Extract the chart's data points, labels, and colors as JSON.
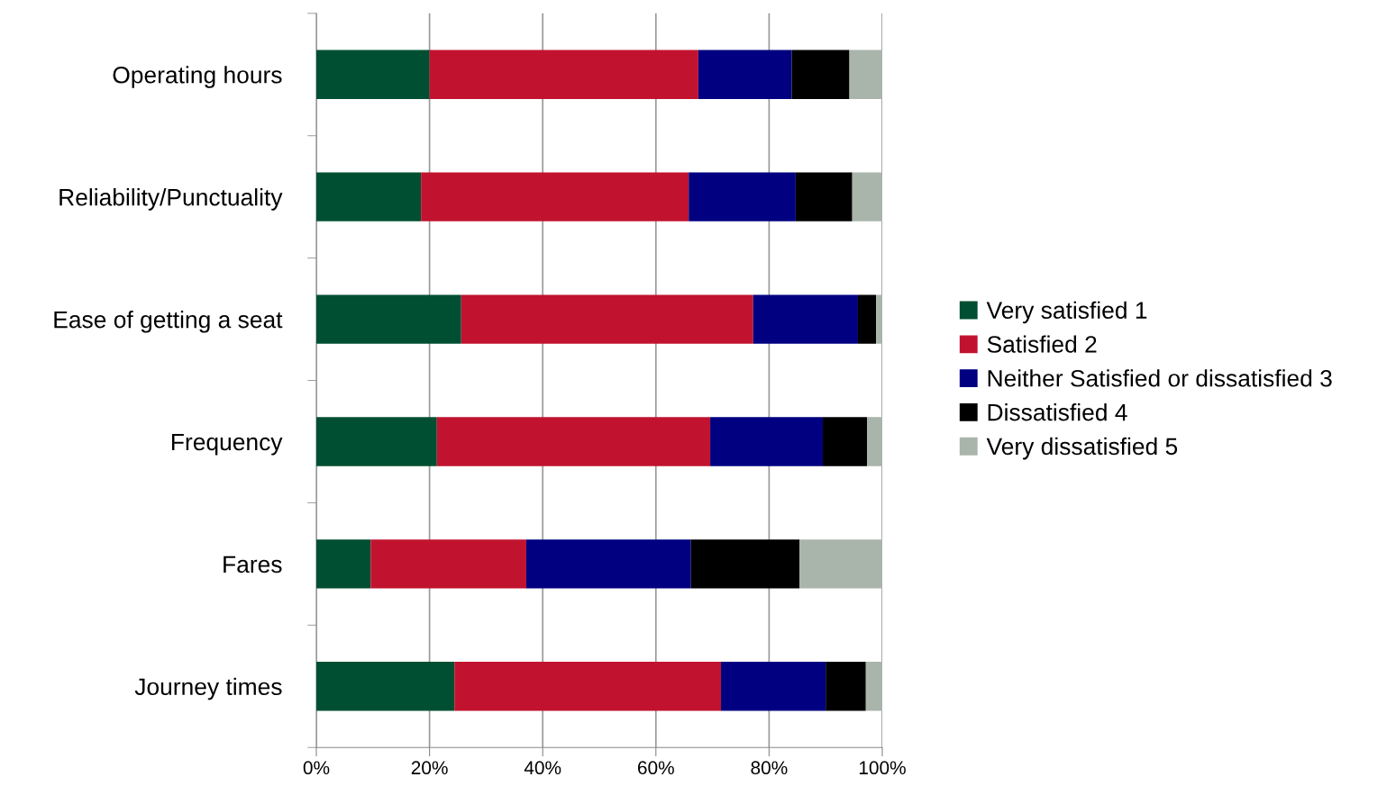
{
  "chart_data": {
    "type": "bar",
    "orientation": "horizontal",
    "stacked": true,
    "categories": [
      "Operating hours",
      "Reliability/Punctuality",
      "Ease of getting a seat",
      "Frequency",
      "Fares",
      "Journey times"
    ],
    "series": [
      {
        "name": "Very satisfied 1",
        "color": "#004f32",
        "values": [
          20,
          18.5,
          25.6,
          21.3,
          9.6,
          24.4
        ]
      },
      {
        "name": "Satisfied 2",
        "color": "#c1132f",
        "values": [
          47.5,
          47.3,
          51.6,
          48.3,
          27.5,
          47.1
        ]
      },
      {
        "name": "Neither Satisfied or dissatisfied 3",
        "color": "#000080",
        "values": [
          16.5,
          18.9,
          18.5,
          19.9,
          29.1,
          18.5
        ]
      },
      {
        "name": "Dissatisfied 4",
        "color": "#000000",
        "values": [
          10.2,
          10.0,
          3.2,
          7.8,
          19.2,
          7.1
        ]
      },
      {
        "name": "Very dissatisfied 5",
        "color": "#a9b4aa",
        "values": [
          5.8,
          5.3,
          1.1,
          2.7,
          14.6,
          2.9
        ]
      }
    ],
    "xlim": [
      0,
      100
    ],
    "xticks": [
      {
        "value": 0,
        "label": "0%"
      },
      {
        "value": 20,
        "label": "20%"
      },
      {
        "value": 40,
        "label": "40%"
      },
      {
        "value": 60,
        "label": "60%"
      },
      {
        "value": 80,
        "label": "80%"
      },
      {
        "value": 100,
        "label": "100%"
      }
    ],
    "grid": "x",
    "legend": "right"
  }
}
